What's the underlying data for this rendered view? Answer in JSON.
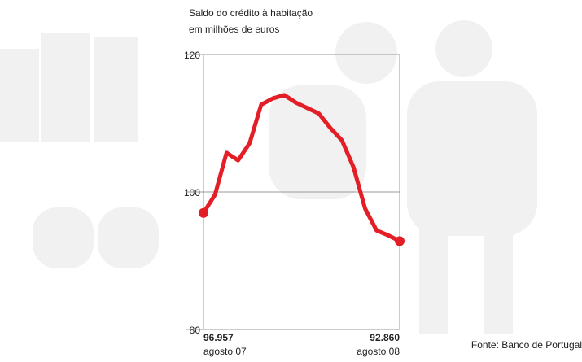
{
  "chart_data": {
    "type": "line",
    "title": "Saldo do crédito à habitação",
    "subtitle": "em milhões de euros",
    "categories": [
      "agosto 07",
      null,
      null,
      null,
      null,
      null,
      null,
      null,
      null,
      null,
      null,
      null,
      null,
      null,
      null,
      null,
      null,
      "agosto 08"
    ],
    "series": [
      {
        "color": "#e41e26",
        "values": [
          96.957,
          99.6,
          105.7,
          104.6,
          107.1,
          112.7,
          113.6,
          114.1,
          113.0,
          112.2,
          111.4,
          109.3,
          107.5,
          103.6,
          97.6,
          94.4,
          93.7,
          92.86
        ],
        "value_labels": [
          "96.957",
          null,
          null,
          null,
          null,
          null,
          null,
          null,
          null,
          null,
          null,
          null,
          null,
          null,
          null,
          null,
          null,
          "92.860"
        ]
      }
    ],
    "ylim": [
      80,
      120
    ],
    "yticks": [
      80,
      100,
      120
    ],
    "grid": true,
    "source": "Fonte: Banco de Portugal"
  }
}
